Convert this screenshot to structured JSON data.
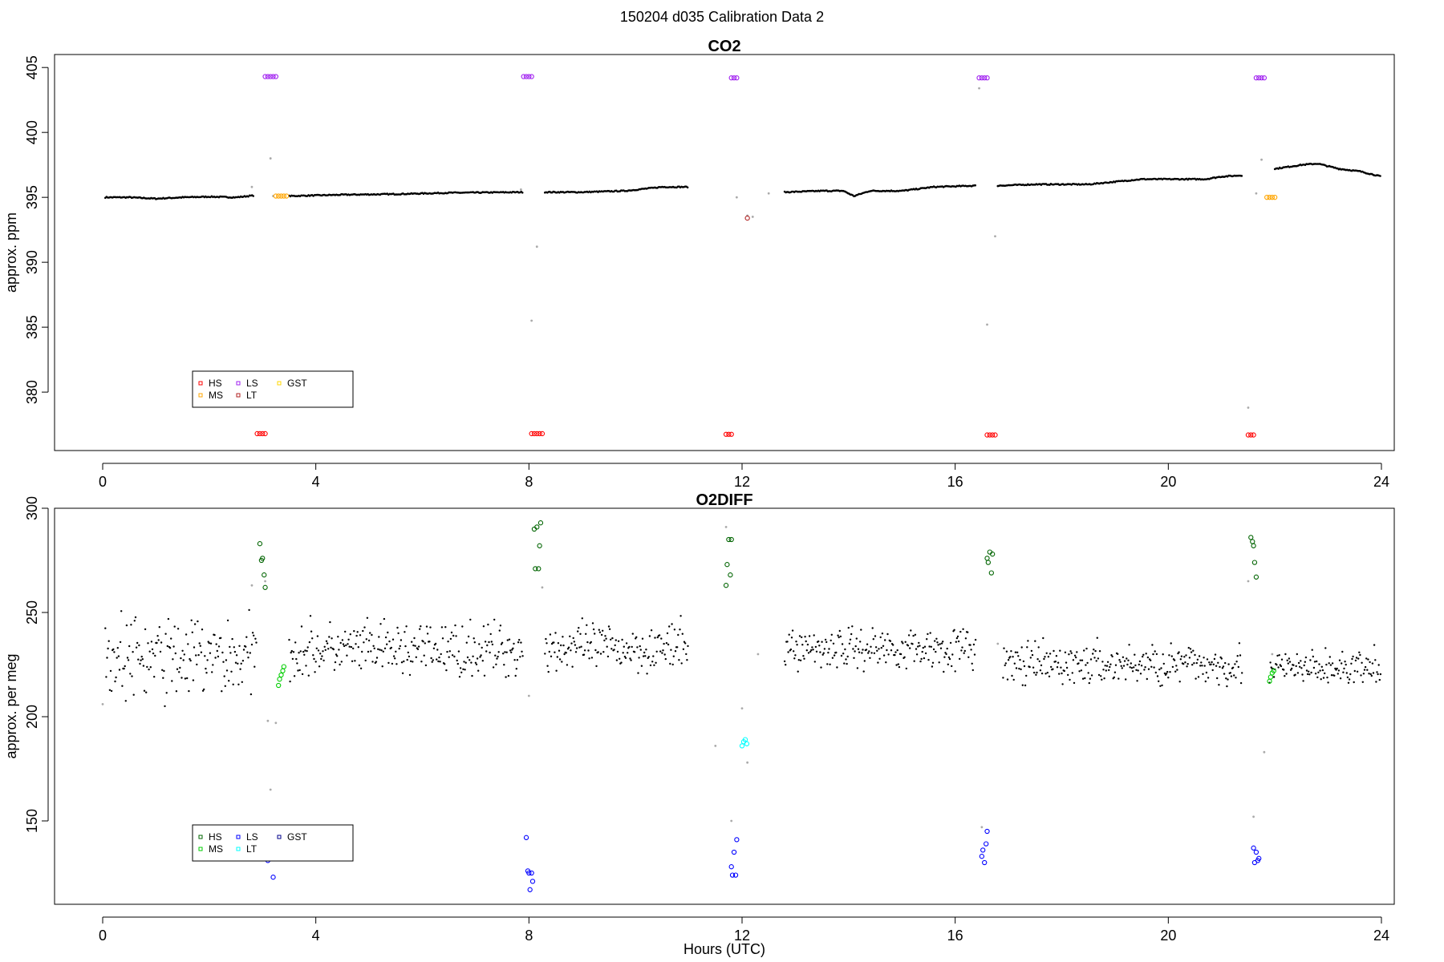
{
  "figure": {
    "suptitle": "150204   d035   Calibration Data 2",
    "xlabel": "Hours (UTC)"
  },
  "chart_data": [
    {
      "type": "scatter",
      "title": "CO2",
      "xlabel": "",
      "ylabel": "approx. ppm",
      "xlim": [
        0,
        24
      ],
      "ylim": [
        375.5,
        406
      ],
      "xticks": [
        0,
        4,
        8,
        12,
        16,
        20,
        24
      ],
      "yticks": [
        380,
        385,
        390,
        395,
        400,
        405
      ],
      "legend": {
        "placement": "bottom-left",
        "entries": [
          {
            "label": "HS",
            "color": "#ff0000"
          },
          {
            "label": "MS",
            "color": "#ffa500"
          },
          {
            "label": "LS",
            "color": "#a020f0"
          },
          {
            "label": "LT",
            "color": "#b22222"
          },
          {
            "label": "GST",
            "color": "#ffd700"
          }
        ]
      },
      "background_trace": {
        "color": "#000000",
        "segments": [
          {
            "x": [
              0.05,
              0.5,
              1.0,
              1.5,
              2.0,
              2.5,
              2.85
            ],
            "y": [
              395.0,
              395.0,
              394.9,
              395.0,
              395.05,
              395.0,
              395.15
            ]
          },
          {
            "x": [
              3.5,
              4.5,
              5.5,
              6.5,
              7.9
            ],
            "y": [
              395.1,
              395.2,
              395.25,
              395.35,
              395.4
            ]
          },
          {
            "x": [
              8.3,
              9.0,
              9.8,
              10.5,
              11.0
            ],
            "y": [
              395.4,
              395.4,
              395.5,
              395.8,
              395.8
            ]
          },
          {
            "x": [
              12.8,
              13.5,
              13.9,
              14.1,
              14.4,
              15.0,
              15.6,
              16.4
            ],
            "y": [
              395.4,
              395.5,
              395.5,
              395.1,
              395.5,
              395.5,
              395.8,
              395.9
            ]
          },
          {
            "x": [
              16.8,
              17.5,
              18.5,
              19.5,
              20.3,
              20.7,
              21.0,
              21.4
            ],
            "y": [
              395.9,
              396.0,
              396.0,
              396.4,
              396.4,
              396.4,
              396.6,
              396.7
            ]
          },
          {
            "x": [
              22.0,
              22.5,
              22.8,
              23.2,
              23.6,
              24.0
            ],
            "y": [
              397.2,
              397.5,
              397.6,
              397.2,
              397.0,
              396.6
            ]
          }
        ]
      },
      "gray_points": {
        "color": "#aaaaaa",
        "x": [
          2.8,
          3.15,
          3.2,
          7.85,
          8.05,
          8.15,
          11.9,
          12.1,
          12.2,
          12.5,
          16.45,
          16.6,
          16.75,
          21.5,
          21.65,
          21.75
        ],
        "y": [
          395.8,
          398.0,
          395.1,
          395.6,
          385.5,
          391.2,
          395.0,
          393.6,
          393.5,
          395.3,
          403.4,
          385.2,
          392.0,
          378.8,
          395.3,
          397.9
        ]
      },
      "series": [
        {
          "name": "HS",
          "color": "#ff0000",
          "x": [
            2.9,
            2.95,
            3.0,
            3.05,
            8.05,
            8.1,
            8.15,
            8.2,
            8.25,
            11.7,
            11.75,
            11.8,
            16.6,
            16.65,
            16.7,
            16.75,
            21.5,
            21.55,
            21.6
          ],
          "y": [
            376.8,
            376.8,
            376.8,
            376.8,
            376.8,
            376.8,
            376.8,
            376.8,
            376.8,
            376.75,
            376.75,
            376.75,
            376.7,
            376.7,
            376.7,
            376.7,
            376.7,
            376.7,
            376.7
          ]
        },
        {
          "name": "MS",
          "color": "#ffa500",
          "x": [
            3.25,
            3.3,
            3.35,
            3.4,
            3.45,
            21.85,
            21.9,
            21.95,
            22.0
          ],
          "y": [
            395.1,
            395.1,
            395.1,
            395.1,
            395.1,
            395.0,
            395.0,
            395.0,
            395.0
          ]
        },
        {
          "name": "LS",
          "color": "#a020f0",
          "x": [
            3.05,
            3.1,
            3.15,
            3.2,
            3.25,
            7.9,
            7.95,
            8.0,
            8.05,
            11.8,
            11.85,
            11.9,
            16.45,
            16.5,
            16.55,
            16.6,
            21.65,
            21.7,
            21.75,
            21.8
          ],
          "y": [
            404.3,
            404.3,
            404.3,
            404.3,
            404.3,
            404.3,
            404.3,
            404.3,
            404.3,
            404.2,
            404.2,
            404.2,
            404.2,
            404.2,
            404.2,
            404.2,
            404.2,
            404.2,
            404.2,
            404.2
          ]
        },
        {
          "name": "LT",
          "color": "#b22222",
          "x": [
            12.1
          ],
          "y": [
            393.4
          ]
        },
        {
          "name": "GST",
          "color": "#ffd700",
          "x": [],
          "y": []
        }
      ]
    },
    {
      "type": "scatter",
      "title": "O2DIFF",
      "xlabel": "Hours (UTC)",
      "ylabel": "approx. per meg",
      "xlim": [
        0,
        24
      ],
      "ylim": [
        110,
        300
      ],
      "xticks": [
        0,
        4,
        8,
        12,
        16,
        20,
        24
      ],
      "yticks": [
        150,
        200,
        250,
        300
      ],
      "legend": {
        "placement": "bottom-left",
        "entries": [
          {
            "label": "HS",
            "color": "#006400"
          },
          {
            "label": "MS",
            "color": "#00cd00"
          },
          {
            "label": "LS",
            "color": "#0000ff"
          },
          {
            "label": "LT",
            "color": "#00ffff"
          },
          {
            "label": "GST",
            "color": "#00008b"
          }
        ]
      },
      "background_trace": {
        "color": "#000000",
        "segments": [
          {
            "x_range": [
              0.05,
              2.9
            ],
            "level": 228,
            "spread": 14
          },
          {
            "x_range": [
              3.5,
              7.9
            ],
            "level": 232,
            "spread": 9
          },
          {
            "x_range": [
              8.3,
              11.0
            ],
            "level": 233,
            "spread": 8
          },
          {
            "x_range": [
              12.8,
              16.4
            ],
            "level": 233,
            "spread": 7
          },
          {
            "x_range": [
              16.9,
              21.4
            ],
            "level": 225,
            "spread": 7
          },
          {
            "x_range": [
              21.9,
              24.0
            ],
            "level": 223,
            "spread": 6
          }
        ]
      },
      "gray_points": {
        "color": "#aaaaaa",
        "x": [
          0.0,
          2.8,
          3.1,
          3.15,
          3.25,
          8.25,
          8.0,
          11.5,
          11.7,
          11.8,
          12.0,
          12.1,
          12.3,
          16.5,
          16.8,
          21.5,
          21.6,
          21.8,
          21.95,
          3.05
        ],
        "y": [
          206,
          263,
          198,
          165,
          197,
          262,
          210,
          186,
          291,
          150,
          204,
          178,
          230,
          147,
          235,
          265,
          152,
          183,
          230,
          265
        ]
      },
      "series": [
        {
          "name": "HS",
          "color": "#006400",
          "x": [
            2.95,
            2.98,
            3.0,
            3.03,
            3.05,
            8.1,
            8.12,
            8.15,
            8.18,
            8.2,
            8.22,
            11.7,
            11.72,
            11.75,
            11.78,
            11.8,
            16.6,
            16.62,
            16.65,
            16.68,
            16.7,
            21.55,
            21.58,
            21.6,
            21.62,
            21.65
          ],
          "y": [
            283,
            275,
            276,
            268,
            262,
            290,
            271,
            291,
            271,
            282,
            293,
            263,
            273,
            285,
            268,
            285,
            276,
            274,
            279,
            269,
            278,
            286,
            284,
            282,
            274,
            267
          ]
        },
        {
          "name": "MS",
          "color": "#00cd00",
          "x": [
            3.3,
            3.32,
            3.35,
            3.38,
            3.4,
            21.9,
            21.92,
            21.95,
            21.98
          ],
          "y": [
            215,
            218,
            220,
            222,
            224,
            217,
            219,
            221,
            222
          ]
        },
        {
          "name": "LS",
          "color": "#0000ff",
          "x": [
            3.1,
            3.2,
            7.95,
            7.98,
            8.0,
            8.02,
            8.05,
            8.07,
            11.8,
            11.82,
            11.85,
            11.88,
            11.9,
            16.5,
            16.52,
            16.55,
            16.58,
            16.6,
            21.6,
            21.62,
            21.65,
            21.68,
            21.7
          ],
          "y": [
            131,
            123,
            142,
            126,
            125,
            117,
            125,
            121,
            128,
            124,
            135,
            124,
            141,
            133,
            136,
            130,
            139,
            145,
            137,
            130,
            135,
            131,
            132
          ]
        },
        {
          "name": "LT",
          "color": "#00ffff",
          "x": [
            12.0,
            12.03,
            12.06,
            12.09
          ],
          "y": [
            186,
            188,
            189,
            187
          ]
        },
        {
          "name": "GST",
          "color": "#00008b",
          "x": [],
          "y": []
        }
      ]
    }
  ]
}
